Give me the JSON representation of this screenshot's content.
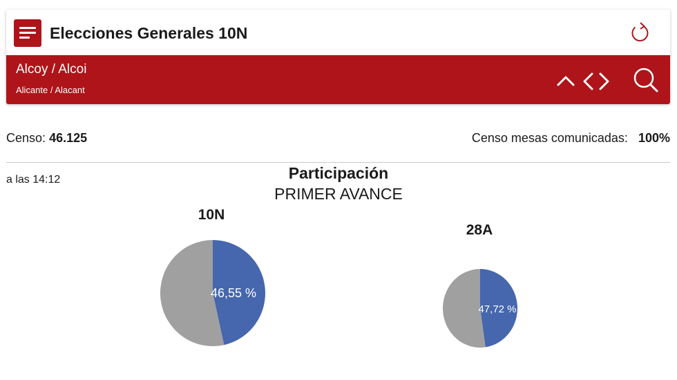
{
  "header": {
    "title": "Elecciones Generales 10N",
    "menu_icon": "hamburger-menu-icon",
    "refresh_icon": "refresh-icon"
  },
  "location": {
    "name": "Alcoy / Alcoi",
    "province": "Alicante / Alacant"
  },
  "nav_icons": [
    "chevron-up-icon",
    "chevron-left-icon",
    "chevron-right-icon",
    "search-icon"
  ],
  "stats": {
    "censo_label": "Censo:",
    "censo_value": "46.125",
    "mesas_label": "Censo mesas comunicadas:",
    "mesas_value": "100%"
  },
  "participation": {
    "time": "a las 14:12",
    "title": "Participación",
    "subtitle": "PRIMER AVANCE"
  },
  "colors": {
    "brand_red": "#ae1419",
    "participation_blue": "#4666ad",
    "remainder_gray": "#a0a0a0"
  },
  "chart_data": [
    {
      "type": "pie",
      "title": "10N",
      "slices": [
        {
          "value": 46.55,
          "color": "#4666ad"
        },
        {
          "value": 53.45,
          "color": "#a0a0a0"
        }
      ],
      "data_label": "46,55 %"
    },
    {
      "type": "pie",
      "title": "28A",
      "slices": [
        {
          "value": 47.72,
          "color": "#4666ad"
        },
        {
          "value": 52.28,
          "color": "#a0a0a0"
        }
      ],
      "data_label": "47,72 %"
    }
  ]
}
